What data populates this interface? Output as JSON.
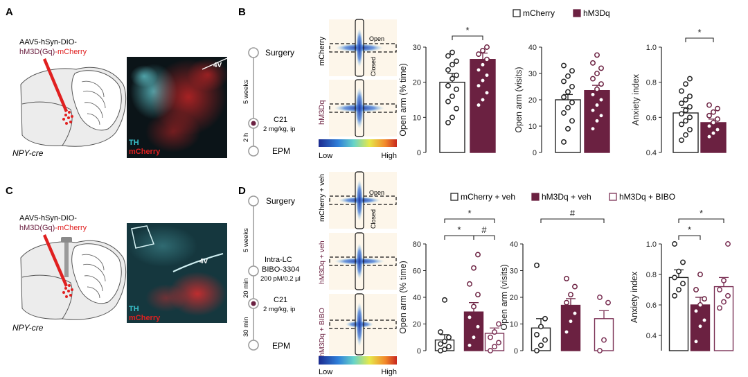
{
  "panel_labels": {
    "a": "A",
    "b": "B",
    "c": "C",
    "d": "D"
  },
  "colors": {
    "mcherry": "#ffffff",
    "hm3dq": "#6b2141",
    "bibo": "#ffffff",
    "bibo_edge": "#7b3155",
    "axis": "#222222",
    "tissue": "#0b1418",
    "cyan": "#39c2cc",
    "red": "#e02020"
  },
  "panelA": {
    "virus_line1": "AAV5-hSyn-DIO-",
    "virus_part_a": "hM3D(Gq)",
    "virus_part_b": "-mCherry",
    "mouse": "NPY-cre",
    "label_4v": "4V",
    "label_th": "TH",
    "label_mcherry": "mCherry"
  },
  "panelC": {
    "virus_line1": "AAV5-hSyn-DIO-",
    "virus_part_a": "hM3D(Gq)",
    "virus_part_b": "-mCherry",
    "mouse": "NPY-cre",
    "label_4v": "4V",
    "label_th": "TH",
    "label_mcherry": "mCherry"
  },
  "timelineB": {
    "step1": "Surgery",
    "interval1": "5 weeks",
    "step2": "C21",
    "step2_dose": "2 mg/kg, ip",
    "interval2": "2 h",
    "step3": "EPM"
  },
  "timelineD": {
    "step1": "Surgery",
    "interval1": "5 weeks",
    "step2": "Intra-LC",
    "step2_drug": "BIBO-3304",
    "step2_dose": "200 pM/0.2 µl",
    "interval2": "20 min",
    "step3": "C21",
    "step3_dose": "2 mg/kg, ip",
    "interval3": "30 min",
    "step4": "EPM"
  },
  "heatmapB": {
    "row1": "mCherry",
    "row2": "hM3Dq",
    "open": "Open",
    "closed": "Closed",
    "low": "Low",
    "high": "High"
  },
  "heatmapD": {
    "row1": "mCherry + veh",
    "row2": "hM3Dq + veh",
    "row3": "hM3Dq + BIBO",
    "open": "Open",
    "closed": "Closed",
    "low": "Low",
    "high": "High"
  },
  "legendB": {
    "item1": "mCherry",
    "item2": "hM3Dq"
  },
  "legendD": {
    "item1": "mCherry + veh",
    "item2": "hM3Dq + veh",
    "item3": "hM3Dq + BIBO"
  },
  "chart_data": [
    {
      "id": "B1",
      "type": "bar",
      "ylabel": "Open arm (% time)",
      "ylim": [
        0,
        30
      ],
      "yticks": [
        0,
        10,
        20,
        30
      ],
      "categories": [
        "mCherry",
        "hM3Dq"
      ],
      "values": [
        20,
        26.5
      ],
      "errors": [
        2.5,
        1.8
      ],
      "points": [
        [
          8.5,
          10,
          12.5,
          14.5,
          16,
          18,
          19,
          21,
          22,
          23.5,
          25,
          26,
          27.5,
          28.5
        ],
        [
          13.5,
          15,
          17,
          19,
          20.5,
          22,
          23.5,
          25,
          26.5,
          28,
          29,
          30
        ]
      ],
      "significance": [
        {
          "from": 0,
          "to": 1,
          "label": "*"
        }
      ]
    },
    {
      "id": "B2",
      "type": "bar",
      "ylabel": "Open arm (visits)",
      "ylim": [
        0,
        40
      ],
      "yticks": [
        0,
        10,
        20,
        30,
        40
      ],
      "categories": [
        "mCherry",
        "hM3Dq"
      ],
      "values": [
        20,
        23.5
      ],
      "errors": [
        2,
        2
      ],
      "points": [
        [
          4,
          9,
          12,
          15,
          17,
          19,
          21,
          23,
          25,
          27,
          29,
          31,
          33
        ],
        [
          9,
          12,
          14,
          16,
          18,
          20,
          22,
          24,
          26,
          28,
          30,
          32,
          34,
          37
        ]
      ],
      "significance": []
    },
    {
      "id": "B3",
      "type": "bar",
      "ylabel": "Anxiety index",
      "ylim": [
        0.4,
        1.0
      ],
      "yticks": [
        0.4,
        0.6,
        0.8,
        1.0
      ],
      "categories": [
        "mCherry",
        "hM3Dq"
      ],
      "values": [
        0.625,
        0.57
      ],
      "errors": [
        0.03,
        0.02
      ],
      "points": [
        [
          0.47,
          0.5,
          0.53,
          0.56,
          0.58,
          0.6,
          0.62,
          0.64,
          0.66,
          0.68,
          0.7,
          0.72,
          0.75,
          0.79,
          0.82
        ],
        [
          0.49,
          0.51,
          0.53,
          0.55,
          0.57,
          0.59,
          0.61,
          0.63,
          0.65,
          0.67
        ]
      ],
      "significance": [
        {
          "from": 0,
          "to": 1,
          "label": "*"
        }
      ]
    },
    {
      "id": "D1",
      "type": "bar",
      "ylabel": "Open arm (% time)",
      "ylim": [
        0,
        80
      ],
      "yticks": [
        0,
        20,
        40,
        60,
        80
      ],
      "categories": [
        "mCherry + veh",
        "hM3Dq + veh",
        "hM3Dq + BIBO"
      ],
      "values": [
        8,
        29,
        13
      ],
      "errors": [
        4,
        7,
        4
      ],
      "points": [
        [
          0,
          1,
          3,
          5,
          7,
          10,
          14,
          38
        ],
        [
          4,
          10,
          18,
          25,
          33,
          42,
          50,
          62,
          72
        ],
        [
          0,
          3,
          6,
          10,
          14,
          20
        ]
      ],
      "significance": [
        {
          "from": 0,
          "to": 2,
          "label": "*"
        },
        {
          "from": 0,
          "to": 1,
          "label": "*"
        },
        {
          "from": 1,
          "to": 2,
          "label": "#"
        }
      ]
    },
    {
      "id": "D2",
      "type": "bar",
      "ylabel": "Open arm (visits)",
      "ylim": [
        0,
        40
      ],
      "yticks": [
        0,
        10,
        20,
        30,
        40
      ],
      "categories": [
        "mCherry + veh",
        "hM3Dq + veh",
        "hM3Dq + BIBO"
      ],
      "values": [
        8.5,
        17,
        12
      ],
      "errors": [
        3.5,
        2.5,
        3
      ],
      "points": [
        [
          0,
          2,
          4,
          6,
          9,
          12,
          32
        ],
        [
          7,
          11,
          14,
          18,
          21,
          24,
          27
        ],
        [
          0,
          4,
          18,
          20
        ]
      ],
      "significance": [
        {
          "from": 0,
          "to": 2,
          "label": "#"
        }
      ]
    },
    {
      "id": "D3",
      "type": "bar",
      "ylabel": "Anxiety index",
      "ylim": [
        0.3,
        1.0
      ],
      "yticks": [
        0.4,
        0.6,
        0.8,
        1.0
      ],
      "categories": [
        "mCherry + veh",
        "hM3Dq + veh",
        "hM3Dq + BIBO"
      ],
      "values": [
        0.78,
        0.6,
        0.72
      ],
      "errors": [
        0.05,
        0.05,
        0.06
      ],
      "points": [
        [
          0.66,
          0.7,
          0.74,
          0.78,
          0.82,
          0.88,
          1.0
        ],
        [
          0.36,
          0.46,
          0.5,
          0.56,
          0.6,
          0.64,
          0.7,
          0.8
        ],
        [
          0.58,
          0.62,
          0.66,
          0.7,
          0.76,
          1.0
        ]
      ],
      "significance": [
        {
          "from": 0,
          "to": 2,
          "label": "*"
        },
        {
          "from": 0,
          "to": 1,
          "label": "*"
        }
      ]
    }
  ]
}
